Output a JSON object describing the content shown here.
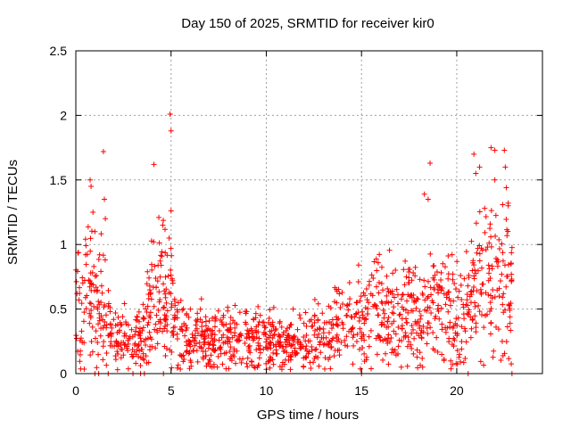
{
  "chart_data": {
    "type": "scatter",
    "title": "Day 150 of 2025, SRMTID for receiver kir0",
    "xlabel": "GPS time / hours",
    "ylabel": "SRMTID / TECUs",
    "xlim": [
      0,
      24.5
    ],
    "ylim": [
      0,
      2.5
    ],
    "xticks": [
      0,
      5,
      10,
      15,
      20
    ],
    "xtick_labels": [
      "0",
      "5",
      "10",
      "15",
      "20"
    ],
    "yticks": [
      0,
      0.5,
      1,
      1.5,
      2,
      2.5
    ],
    "ytick_labels": [
      "0",
      "0.5",
      "1",
      "1.5",
      "2",
      "2.5"
    ],
    "grid": true,
    "marker": "+",
    "color": "#ff0000",
    "series": [
      {
        "name": "SRMTID",
        "profile": [
          {
            "x": 0.0,
            "y": 0.55
          },
          {
            "x": 0.5,
            "y": 0.7
          },
          {
            "x": 1.0,
            "y": 0.6
          },
          {
            "x": 1.5,
            "y": 0.4
          },
          {
            "x": 2.0,
            "y": 0.35
          },
          {
            "x": 2.5,
            "y": 0.3
          },
          {
            "x": 3.0,
            "y": 0.2
          },
          {
            "x": 3.5,
            "y": 0.35
          },
          {
            "x": 4.0,
            "y": 0.55
          },
          {
            "x": 4.5,
            "y": 0.65
          },
          {
            "x": 5.0,
            "y": 0.5
          },
          {
            "x": 5.5,
            "y": 0.35
          },
          {
            "x": 6.0,
            "y": 0.25
          },
          {
            "x": 7.0,
            "y": 0.25
          },
          {
            "x": 8.0,
            "y": 0.27
          },
          {
            "x": 9.0,
            "y": 0.28
          },
          {
            "x": 10.0,
            "y": 0.25
          },
          {
            "x": 11.0,
            "y": 0.2
          },
          {
            "x": 12.0,
            "y": 0.25
          },
          {
            "x": 13.0,
            "y": 0.3
          },
          {
            "x": 14.0,
            "y": 0.38
          },
          {
            "x": 15.0,
            "y": 0.45
          },
          {
            "x": 16.0,
            "y": 0.5
          },
          {
            "x": 17.0,
            "y": 0.45
          },
          {
            "x": 18.0,
            "y": 0.5
          },
          {
            "x": 19.0,
            "y": 0.5
          },
          {
            "x": 20.0,
            "y": 0.45
          },
          {
            "x": 21.0,
            "y": 0.65
          },
          {
            "x": 21.5,
            "y": 0.7
          },
          {
            "x": 22.0,
            "y": 0.6
          },
          {
            "x": 22.5,
            "y": 0.75
          },
          {
            "x": 22.8,
            "y": 0.6
          }
        ],
        "outliers": [
          {
            "x": 0.75,
            "y": 1.5
          },
          {
            "x": 0.8,
            "y": 1.45
          },
          {
            "x": 0.9,
            "y": 1.25
          },
          {
            "x": 1.0,
            "y": 1.1
          },
          {
            "x": 1.45,
            "y": 1.72
          },
          {
            "x": 1.5,
            "y": 1.35
          },
          {
            "x": 1.55,
            "y": 1.2
          },
          {
            "x": 4.1,
            "y": 1.62
          },
          {
            "x": 4.9,
            "y": 1.05
          },
          {
            "x": 4.95,
            "y": 2.01
          },
          {
            "x": 5.0,
            "y": 1.88
          },
          {
            "x": 5.0,
            "y": 1.26
          },
          {
            "x": 18.6,
            "y": 1.63
          },
          {
            "x": 18.3,
            "y": 1.39
          },
          {
            "x": 18.5,
            "y": 1.35
          },
          {
            "x": 20.9,
            "y": 1.7
          },
          {
            "x": 21.0,
            "y": 1.55
          },
          {
            "x": 21.2,
            "y": 1.6
          },
          {
            "x": 21.8,
            "y": 1.75
          },
          {
            "x": 22.0,
            "y": 1.73
          },
          {
            "x": 22.0,
            "y": 1.5
          },
          {
            "x": 22.5,
            "y": 1.73
          },
          {
            "x": 22.55,
            "y": 1.6
          },
          {
            "x": 22.6,
            "y": 1.44
          },
          {
            "x": 22.7,
            "y": 1.3
          }
        ],
        "zero_points": [
          {
            "x": 1.0,
            "y": 0
          },
          {
            "x": 1.2,
            "y": 0
          },
          {
            "x": 1.7,
            "y": 0
          },
          {
            "x": 3.0,
            "y": 0
          },
          {
            "x": 3.4,
            "y": 0
          },
          {
            "x": 3.6,
            "y": 0
          },
          {
            "x": 4.6,
            "y": 0
          },
          {
            "x": 15.0,
            "y": 0
          },
          {
            "x": 20.6,
            "y": 0
          },
          {
            "x": 22.9,
            "y": 0
          }
        ],
        "point_count": 1400,
        "x_range": [
          0,
          22.9
        ]
      }
    ]
  }
}
